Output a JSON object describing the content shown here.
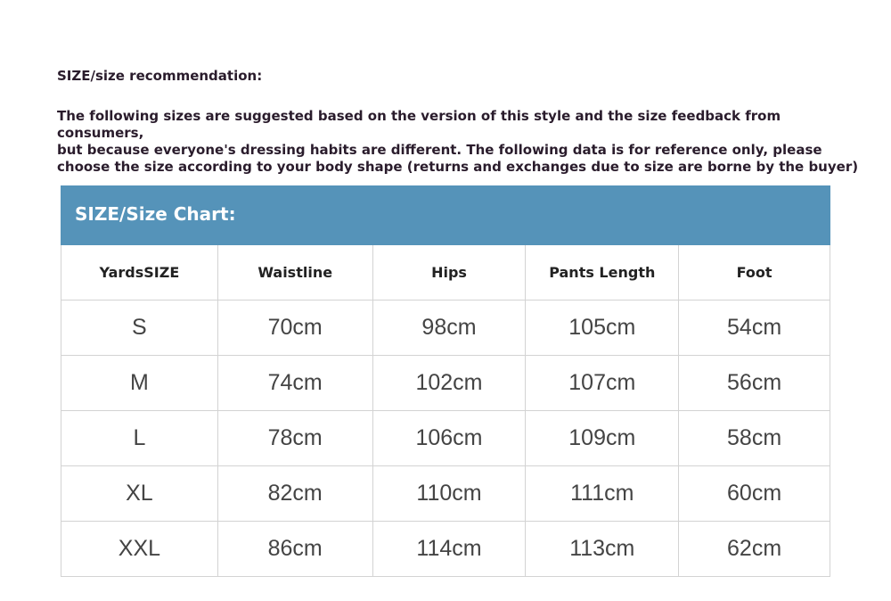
{
  "heading": "SIZE/size recommendation:",
  "description": "The following sizes are suggested based on the version of this style and the size feedback from consumers,\nbut because everyone's dressing habits are different. The following data is for reference only, please\nchoose the size according to your body shape (returns and exchanges due to size are borne by the buyer)",
  "table": {
    "title": "SIZE/Size Chart:",
    "header_color": "#5593b9",
    "columns": [
      "YardsSIZE",
      "Waistline",
      "Hips",
      "Pants Length",
      "Foot"
    ],
    "rows": [
      [
        "S",
        "70cm",
        "98cm",
        "105cm",
        "54cm"
      ],
      [
        "M",
        "74cm",
        "102cm",
        "107cm",
        "56cm"
      ],
      [
        "L",
        "78cm",
        "106cm",
        "109cm",
        "58cm"
      ],
      [
        "XL",
        "82cm",
        "110cm",
        "111cm",
        "60cm"
      ],
      [
        "XXL",
        "86cm",
        "114cm",
        "113cm",
        "62cm"
      ]
    ]
  }
}
